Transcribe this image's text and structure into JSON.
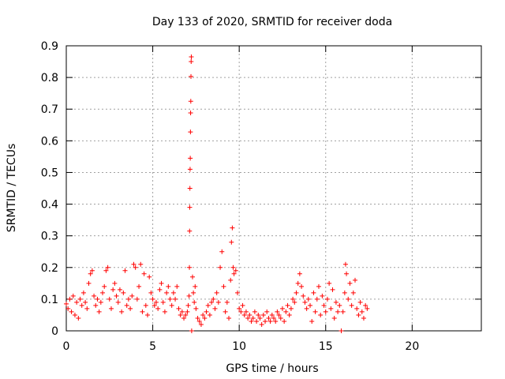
{
  "chart_data": {
    "type": "scatter",
    "title": "Day 133 of 2020, SRMTID for receiver doda",
    "xlabel": "GPS time / hours",
    "ylabel": "SRMTID / TECUs",
    "xlim": [
      0,
      24
    ],
    "ylim": [
      0,
      0.9
    ],
    "xticks": [
      0,
      5,
      10,
      15,
      20
    ],
    "yticks": [
      0,
      0.1,
      0.2,
      0.3,
      0.4,
      0.5,
      0.6,
      0.7,
      0.8,
      0.9
    ],
    "xtick_labels": [
      "0",
      "5",
      "10",
      "15",
      "20"
    ],
    "ytick_labels": [
      "0",
      "0.1",
      "0.2",
      "0.3",
      "0.4",
      "0.5",
      "0.6",
      "0.7",
      "0.8",
      "0.9"
    ],
    "grid": true,
    "marker": "+",
    "color": "#ff0000",
    "series": [
      {
        "name": "SRMTID",
        "points": [
          [
            0.0,
            0.085
          ],
          [
            0.1,
            0.07
          ],
          [
            0.2,
            0.1
          ],
          [
            0.3,
            0.06
          ],
          [
            0.4,
            0.11
          ],
          [
            0.5,
            0.05
          ],
          [
            0.6,
            0.09
          ],
          [
            0.7,
            0.04
          ],
          [
            0.8,
            0.1
          ],
          [
            0.9,
            0.08
          ],
          [
            1.0,
            0.12
          ],
          [
            1.1,
            0.09
          ],
          [
            1.2,
            0.07
          ],
          [
            1.3,
            0.15
          ],
          [
            1.4,
            0.18
          ],
          [
            1.5,
            0.19
          ],
          [
            1.6,
            0.11
          ],
          [
            1.7,
            0.08
          ],
          [
            1.8,
            0.1
          ],
          [
            1.9,
            0.06
          ],
          [
            2.0,
            0.09
          ],
          [
            2.1,
            0.12
          ],
          [
            2.2,
            0.14
          ],
          [
            2.3,
            0.19
          ],
          [
            2.4,
            0.2
          ],
          [
            2.5,
            0.1
          ],
          [
            2.6,
            0.07
          ],
          [
            2.7,
            0.13
          ],
          [
            2.8,
            0.15
          ],
          [
            2.9,
            0.11
          ],
          [
            3.0,
            0.09
          ],
          [
            3.1,
            0.13
          ],
          [
            3.2,
            0.06
          ],
          [
            3.3,
            0.12
          ],
          [
            3.4,
            0.19
          ],
          [
            3.5,
            0.08
          ],
          [
            3.6,
            0.1
          ],
          [
            3.7,
            0.07
          ],
          [
            3.8,
            0.11
          ],
          [
            3.9,
            0.21
          ],
          [
            4.0,
            0.2
          ],
          [
            4.1,
            0.1
          ],
          [
            4.2,
            0.14
          ],
          [
            4.3,
            0.21
          ],
          [
            4.4,
            0.06
          ],
          [
            4.5,
            0.18
          ],
          [
            4.6,
            0.08
          ],
          [
            4.7,
            0.05
          ],
          [
            4.8,
            0.17
          ],
          [
            4.9,
            0.12
          ],
          [
            5.0,
            0.1
          ],
          [
            5.1,
            0.08
          ],
          [
            5.2,
            0.09
          ],
          [
            5.3,
            0.07
          ],
          [
            5.4,
            0.13
          ],
          [
            5.5,
            0.15
          ],
          [
            5.6,
            0.09
          ],
          [
            5.7,
            0.06
          ],
          [
            5.8,
            0.12
          ],
          [
            5.9,
            0.14
          ],
          [
            6.0,
            0.1
          ],
          [
            6.1,
            0.08
          ],
          [
            6.2,
            0.12
          ],
          [
            6.3,
            0.1
          ],
          [
            6.4,
            0.14
          ],
          [
            6.5,
            0.07
          ],
          [
            6.6,
            0.05
          ],
          [
            6.7,
            0.06
          ],
          [
            6.8,
            0.04
          ],
          [
            6.9,
            0.05
          ],
          [
            7.0,
            0.06
          ],
          [
            7.05,
            0.08
          ],
          [
            7.1,
            0.11
          ],
          [
            7.12,
            0.2
          ],
          [
            7.13,
            0.315
          ],
          [
            7.14,
            0.39
          ],
          [
            7.15,
            0.45
          ],
          [
            7.16,
            0.51
          ],
          [
            7.17,
            0.545
          ],
          [
            7.18,
            0.628
          ],
          [
            7.19,
            0.688
          ],
          [
            7.2,
            0.725
          ],
          [
            7.21,
            0.803
          ],
          [
            7.22,
            0.85
          ],
          [
            7.23,
            0.865
          ],
          [
            7.25,
            0.0
          ],
          [
            7.3,
            0.17
          ],
          [
            7.35,
            0.12
          ],
          [
            7.4,
            0.09
          ],
          [
            7.45,
            0.14
          ],
          [
            7.5,
            0.07
          ],
          [
            7.6,
            0.04
          ],
          [
            7.7,
            0.03
          ],
          [
            7.8,
            0.02
          ],
          [
            7.9,
            0.05
          ],
          [
            8.0,
            0.04
          ],
          [
            8.1,
            0.06
          ],
          [
            8.2,
            0.08
          ],
          [
            8.3,
            0.05
          ],
          [
            8.4,
            0.09
          ],
          [
            8.5,
            0.1
          ],
          [
            8.6,
            0.07
          ],
          [
            8.7,
            0.12
          ],
          [
            8.8,
            0.09
          ],
          [
            8.9,
            0.2
          ],
          [
            9.0,
            0.25
          ],
          [
            9.1,
            0.14
          ],
          [
            9.2,
            0.06
          ],
          [
            9.3,
            0.09
          ],
          [
            9.4,
            0.04
          ],
          [
            9.5,
            0.16
          ],
          [
            9.55,
            0.28
          ],
          [
            9.6,
            0.325
          ],
          [
            9.65,
            0.2
          ],
          [
            9.7,
            0.18
          ],
          [
            9.8,
            0.19
          ],
          [
            9.9,
            0.12
          ],
          [
            10.0,
            0.07
          ],
          [
            10.1,
            0.06
          ],
          [
            10.2,
            0.08
          ],
          [
            10.3,
            0.05
          ],
          [
            10.4,
            0.06
          ],
          [
            10.5,
            0.04
          ],
          [
            10.6,
            0.05
          ],
          [
            10.7,
            0.03
          ],
          [
            10.8,
            0.04
          ],
          [
            10.9,
            0.06
          ],
          [
            11.0,
            0.03
          ],
          [
            11.1,
            0.05
          ],
          [
            11.2,
            0.04
          ],
          [
            11.3,
            0.02
          ],
          [
            11.4,
            0.05
          ],
          [
            11.5,
            0.03
          ],
          [
            11.6,
            0.06
          ],
          [
            11.7,
            0.04
          ],
          [
            11.8,
            0.03
          ],
          [
            11.9,
            0.05
          ],
          [
            12.0,
            0.04
          ],
          [
            12.1,
            0.03
          ],
          [
            12.2,
            0.06
          ],
          [
            12.3,
            0.05
          ],
          [
            12.4,
            0.04
          ],
          [
            12.5,
            0.07
          ],
          [
            12.6,
            0.03
          ],
          [
            12.7,
            0.06
          ],
          [
            12.8,
            0.08
          ],
          [
            12.9,
            0.05
          ],
          [
            13.0,
            0.07
          ],
          [
            13.1,
            0.1
          ],
          [
            13.2,
            0.09
          ],
          [
            13.3,
            0.12
          ],
          [
            13.4,
            0.15
          ],
          [
            13.5,
            0.18
          ],
          [
            13.6,
            0.14
          ],
          [
            13.7,
            0.11
          ],
          [
            13.8,
            0.09
          ],
          [
            13.9,
            0.07
          ],
          [
            14.0,
            0.1
          ],
          [
            14.1,
            0.08
          ],
          [
            14.2,
            0.03
          ],
          [
            14.3,
            0.12
          ],
          [
            14.4,
            0.06
          ],
          [
            14.5,
            0.1
          ],
          [
            14.6,
            0.14
          ],
          [
            14.7,
            0.05
          ],
          [
            14.8,
            0.11
          ],
          [
            14.9,
            0.08
          ],
          [
            15.0,
            0.06
          ],
          [
            15.1,
            0.1
          ],
          [
            15.2,
            0.15
          ],
          [
            15.3,
            0.07
          ],
          [
            15.4,
            0.13
          ],
          [
            15.5,
            0.04
          ],
          [
            15.6,
            0.09
          ],
          [
            15.7,
            0.06
          ],
          [
            15.8,
            0.08
          ],
          [
            15.9,
            0.0
          ],
          [
            16.0,
            0.06
          ],
          [
            16.1,
            0.12
          ],
          [
            16.15,
            0.21
          ],
          [
            16.2,
            0.18
          ],
          [
            16.3,
            0.1
          ],
          [
            16.4,
            0.15
          ],
          [
            16.5,
            0.08
          ],
          [
            16.6,
            0.12
          ],
          [
            16.7,
            0.16
          ],
          [
            16.8,
            0.07
          ],
          [
            16.9,
            0.05
          ],
          [
            17.0,
            0.09
          ],
          [
            17.1,
            0.06
          ],
          [
            17.2,
            0.04
          ],
          [
            17.3,
            0.08
          ],
          [
            17.4,
            0.07
          ]
        ]
      }
    ]
  }
}
